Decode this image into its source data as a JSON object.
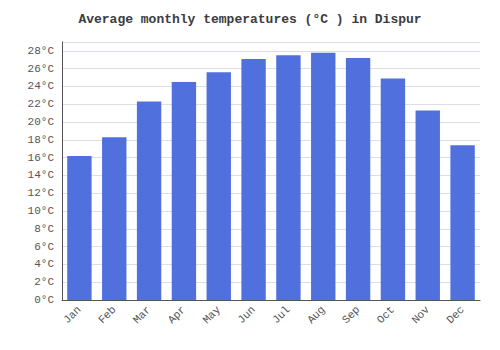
{
  "chart_data": {
    "type": "bar",
    "title": "Average monthly temperatures (°C ) in Dispur",
    "categories": [
      "Jan",
      "Feb",
      "Mar",
      "Apr",
      "May",
      "Jun",
      "Jul",
      "Aug",
      "Sep",
      "Oct",
      "Nov",
      "Dec"
    ],
    "values": [
      16.2,
      18.3,
      22.3,
      24.5,
      25.6,
      27.1,
      27.5,
      27.8,
      27.2,
      24.9,
      21.3,
      17.4
    ],
    "ylim": [
      0,
      29
    ],
    "yticks": [
      {
        "value": 0,
        "label": "0°C"
      },
      {
        "value": 2,
        "label": "2°C"
      },
      {
        "value": 4,
        "label": "4°C"
      },
      {
        "value": 6,
        "label": "6°C"
      },
      {
        "value": 8,
        "label": "8°C"
      },
      {
        "value": 10,
        "label": "10°C"
      },
      {
        "value": 12,
        "label": "12°C"
      },
      {
        "value": 14,
        "label": "14°C"
      },
      {
        "value": 16,
        "label": "16°C"
      },
      {
        "value": 18,
        "label": "18°C"
      },
      {
        "value": 20,
        "label": "20°C"
      },
      {
        "value": 22,
        "label": "22°C"
      },
      {
        "value": 24,
        "label": "24°C"
      },
      {
        "value": 26,
        "label": "26°C"
      },
      {
        "value": 28,
        "label": "28°C"
      }
    ],
    "grid": true
  }
}
